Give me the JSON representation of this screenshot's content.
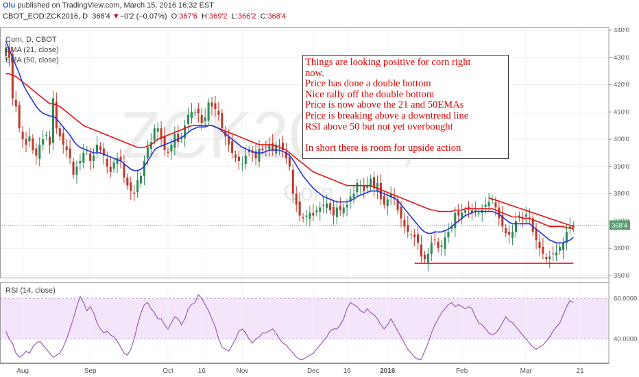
{
  "header": {
    "user": "Olu",
    "published": "published on TradingView.com, March 15, 2016 16:32 EST"
  },
  "ohlc": {
    "symbol": "CBOT_EOD:ZCK2016, D",
    "last": "368'4",
    "change_arrow": "▼",
    "change": "−0'2 (−0.07%)",
    "o_label": "O:",
    "o_value": "367'6",
    "h_label": "H:",
    "h_value": "369'2",
    "l_label": "L:",
    "l_value": "366'2",
    "c_label": "C:",
    "c_value": "368'4"
  },
  "legend": {
    "main": "Corn, D, CBOT",
    "ema21": "EMA (21, close)",
    "ema50": "EMA (50, close)",
    "rsi": "RSI (14, close)"
  },
  "watermark": {
    "symbol": "ZCK2016, D",
    "name": "Corn"
  },
  "price_badge": "368'4",
  "annotation": {
    "lines": [
      "Things are looking positive for corn right",
      "now.",
      "Price has done a double bottom",
      "Nice rally off the double bottom",
      "Price is now above the 21 and 50EMAs",
      "Price is breaking above a downtrend line",
      "RSI above 50 but not yet overbought",
      "",
      "In short there is room for upside action"
    ]
  },
  "colors": {
    "up": "#2e8b57",
    "down": "#c0392b",
    "ema21": "#1f33d6",
    "ema50": "#e81010",
    "rsi_line": "#9b59b6",
    "rsi_bg": "#f3e6fb",
    "trendline": "#e81010"
  },
  "chart_data": [
    {
      "type": "candlestick",
      "title": "Corn, D, CBOT",
      "x_ticks": [
        "Aug",
        "Sep",
        "Oct",
        "16",
        "Nov",
        "Dec",
        "16",
        "2016",
        "Feb",
        "Mar",
        "21"
      ],
      "y_ticks": [
        "350'0",
        "360'0",
        "370'0",
        "380'0",
        "390'0",
        "400'0",
        "410'0",
        "420'0",
        "430'0",
        "440'0"
      ],
      "ylim": [
        349,
        441
      ],
      "last_price": 368.5,
      "series_close": [
        433.5,
        430.0,
        415.0,
        412.0,
        404.0,
        400.0,
        398.0,
        401.0,
        396.0,
        394.0,
        398.0,
        400.0,
        401.5,
        398.0,
        415.0,
        404.0,
        401.0,
        398.0,
        396.0,
        393.0,
        387.0,
        390.0,
        392.0,
        395.0,
        396.0,
        392.0,
        394.0,
        398.0,
        396.0,
        394.0,
        390.0,
        388.0,
        391.5,
        393.0,
        392.0,
        386.0,
        383.0,
        381.0,
        380.0,
        385.0,
        386.5,
        392.0,
        397.0,
        399.0,
        404.0,
        404.0,
        400.0,
        396.0,
        395.0,
        398.0,
        402.0,
        399.0,
        401.0,
        405.0,
        409.0,
        410.0,
        410.0,
        409.5,
        406.0,
        408.0,
        413.5,
        412.0,
        411.0,
        409.0,
        404.0,
        401.0,
        398.0,
        395.0,
        393.0,
        392.0,
        391.0,
        394.0,
        396.0,
        395.0,
        393.0,
        396.5,
        396.0,
        397.0,
        398.0,
        396.0,
        398.0,
        397.5,
        396.0,
        393.0,
        390.0,
        380.0,
        376.0,
        372.0,
        371.0,
        372.0,
        373.0,
        372.0,
        374.0,
        375.0,
        376.0,
        376.5,
        374.0,
        372.0,
        375.0,
        374.0,
        375.0,
        376.0,
        379.0,
        380.0,
        384.0,
        383.0,
        381.0,
        383.0,
        385.5,
        382.0,
        384.0,
        378.0,
        376.0,
        378.0,
        380.0,
        378.0,
        374.0,
        371.0,
        368.0,
        366.0,
        365.0,
        364.0,
        362.0,
        357.0,
        356.0,
        358.0,
        362.0,
        363.0,
        360.0,
        361.0,
        364.0,
        366.0,
        368.0,
        373.0,
        372.0,
        373.0,
        374.0,
        374.5,
        373.0,
        374.0,
        373.0,
        374.0,
        376.0,
        377.0,
        378.0,
        375.0,
        371.0,
        368.0,
        365.5,
        365.0,
        366.0,
        370.0,
        372.0,
        371.0,
        372.5,
        371.0,
        366.0,
        363.0,
        360.0,
        358.0,
        356.0,
        357.0,
        358.0,
        358.5,
        360.5,
        362.0,
        366.0,
        368.0,
        368.5
      ],
      "ema21": [
        436.0,
        433.0,
        430.0,
        427.0,
        424.0,
        420.5,
        418.0,
        416.0,
        414.0,
        412.0,
        410.5,
        409.5,
        409.0,
        408.5,
        408.5,
        407.5,
        406.0,
        404.5,
        403.0,
        401.5,
        399.5,
        398.0,
        397.0,
        396.5,
        396.0,
        395.5,
        395.0,
        395.0,
        395.0,
        394.5,
        394.0,
        393.5,
        393.0,
        392.5,
        392.0,
        391.0,
        390.0,
        389.0,
        388.5,
        388.5,
        389.0,
        390.0,
        392.0,
        394.0,
        396.0,
        397.0,
        397.5,
        398.0,
        398.5,
        399.0,
        399.5,
        400.0,
        400.5,
        401.5,
        402.5,
        403.5,
        404.0,
        404.5,
        404.5,
        404.5,
        405.0,
        405.0,
        404.5,
        404.0,
        403.0,
        402.0,
        401.0,
        400.0,
        399.0,
        398.0,
        397.0,
        396.5,
        396.0,
        395.5,
        395.0,
        395.0,
        395.0,
        395.5,
        396.0,
        396.0,
        396.0,
        396.0,
        395.5,
        395.0,
        394.0,
        392.5,
        390.5,
        388.5,
        386.5,
        385.0,
        383.5,
        382.0,
        381.0,
        380.0,
        379.0,
        378.5,
        378.0,
        377.5,
        377.0,
        377.0,
        377.0,
        377.0,
        377.5,
        378.0,
        379.0,
        379.5,
        380.0,
        380.5,
        381.0,
        381.0,
        381.0,
        380.5,
        380.0,
        379.5,
        379.0,
        378.5,
        377.5,
        376.0,
        374.5,
        373.0,
        371.5,
        370.0,
        368.5,
        367.0,
        366.0,
        365.5,
        365.5,
        366.0,
        366.0,
        366.0,
        366.5,
        367.0,
        368.0,
        369.0,
        370.0,
        371.0,
        372.0,
        372.5,
        373.0,
        373.5,
        373.5,
        373.5,
        373.5,
        373.5,
        373.5,
        373.0,
        372.5,
        371.5,
        370.5,
        369.5,
        369.0,
        369.0,
        369.0,
        369.0,
        369.0,
        369.0,
        368.0,
        367.0,
        366.0,
        365.0,
        364.0,
        363.0,
        362.5,
        362.0,
        362.0,
        362.0,
        362.5,
        363.0,
        364.0
      ],
      "ema50": [
        424.0,
        424.0,
        423.5,
        423.0,
        422.0,
        421.0,
        420.0,
        419.0,
        418.0,
        417.0,
        416.0,
        415.0,
        414.0,
        413.0,
        413.0,
        412.5,
        412.0,
        411.0,
        410.0,
        409.0,
        408.0,
        407.0,
        406.0,
        405.0,
        404.5,
        404.0,
        403.5,
        403.0,
        402.5,
        402.0,
        401.5,
        401.0,
        400.5,
        400.0,
        399.5,
        399.0,
        398.5,
        398.0,
        397.5,
        397.0,
        397.0,
        397.0,
        397.5,
        398.0,
        399.0,
        400.0,
        400.5,
        401.0,
        401.5,
        402.0,
        402.5,
        403.0,
        403.5,
        404.0,
        404.5,
        405.0,
        405.0,
        405.0,
        405.0,
        405.0,
        405.0,
        405.0,
        404.5,
        404.0,
        403.5,
        403.0,
        402.5,
        402.0,
        401.5,
        401.0,
        400.5,
        400.0,
        399.5,
        399.0,
        398.5,
        398.0,
        398.0,
        398.0,
        398.0,
        398.0,
        397.5,
        397.0,
        396.5,
        396.0,
        395.0,
        394.0,
        393.0,
        392.0,
        391.0,
        390.0,
        389.0,
        388.0,
        387.5,
        387.0,
        386.5,
        386.0,
        385.5,
        385.0,
        384.5,
        384.0,
        383.5,
        383.0,
        383.0,
        383.0,
        383.0,
        383.0,
        383.0,
        383.0,
        383.0,
        382.5,
        382.0,
        381.5,
        381.0,
        380.5,
        380.0,
        379.5,
        379.0,
        378.5,
        378.0,
        377.5,
        377.0,
        376.5,
        376.0,
        375.5,
        375.0,
        374.5,
        374.0,
        374.0,
        373.5,
        373.5,
        373.5,
        373.5,
        373.5,
        374.0,
        374.0,
        374.0,
        374.5,
        374.5,
        374.5,
        374.5,
        374.5,
        374.5,
        374.5,
        374.5,
        374.5,
        374.0,
        373.5,
        373.0,
        372.5,
        372.0,
        371.5,
        371.5,
        371.5,
        371.0,
        371.0,
        371.0,
        370.5,
        370.0,
        369.5,
        369.0,
        368.5,
        368.0,
        368.0,
        368.0,
        368.0,
        368.0,
        367.5,
        367.5,
        367.0
      ],
      "trendlines": [
        {
          "name": "downtrend",
          "from": [
            143,
            378.5
          ],
          "to": [
            168,
            368.0
          ]
        },
        {
          "name": "double-bottom-support",
          "from": [
            121,
            354.5
          ],
          "to": [
            168,
            354.5
          ]
        }
      ]
    },
    {
      "type": "line",
      "title": "RSI (14, close)",
      "y_ticks": [
        "40.0000",
        "60.0000"
      ],
      "ylim": [
        28,
        68
      ],
      "values": [
        44,
        40,
        38,
        33,
        31,
        32,
        34,
        33,
        36,
        38,
        39,
        37,
        35,
        33,
        31,
        32,
        33,
        36,
        40,
        45,
        50,
        56,
        61,
        58,
        54,
        56,
        53,
        48,
        45,
        43,
        44,
        42,
        41,
        39,
        36,
        33,
        32,
        35,
        40,
        47,
        53,
        57,
        58,
        55,
        53,
        50,
        50,
        47,
        45,
        48,
        51,
        50,
        47,
        50,
        55,
        57,
        58,
        62,
        60,
        57,
        54,
        50,
        46,
        40,
        36,
        35,
        34,
        37,
        40,
        44,
        45,
        43,
        40,
        38,
        40,
        41,
        43,
        43,
        44,
        45,
        43,
        40,
        38,
        37,
        35,
        33,
        31,
        30,
        30,
        31,
        32,
        33,
        35,
        37,
        39,
        41,
        44,
        45,
        45,
        47,
        50,
        55,
        58,
        57,
        56,
        54,
        53,
        55,
        53,
        52,
        50,
        47,
        45,
        47,
        50,
        47,
        44,
        41,
        38,
        35,
        33,
        31,
        30,
        30,
        34,
        38,
        43,
        47,
        50,
        53,
        55,
        57,
        58,
        56,
        57,
        56,
        55,
        56,
        55,
        51,
        48,
        47,
        45,
        43,
        42,
        43,
        45,
        48,
        51,
        49,
        48,
        46,
        44,
        42,
        40,
        38,
        36,
        35,
        36,
        37,
        39,
        41,
        44,
        46,
        48,
        52,
        56,
        59,
        58
      ]
    }
  ]
}
